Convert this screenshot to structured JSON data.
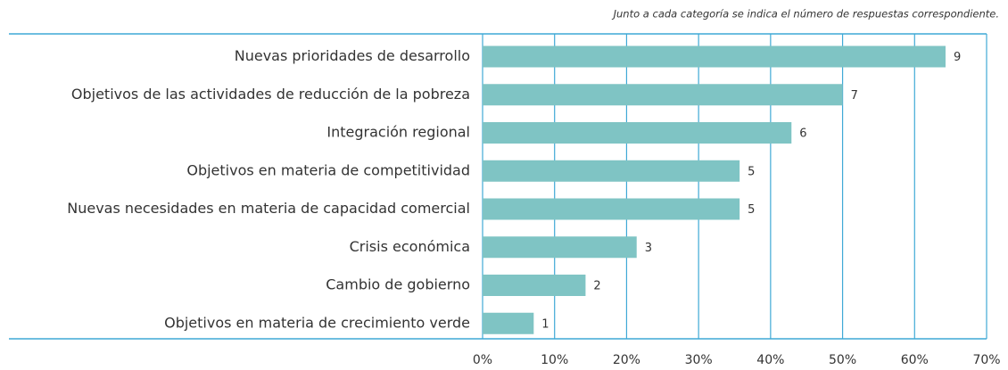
{
  "chart_data": {
    "type": "bar",
    "orientation": "horizontal",
    "annotation": "Junto a cada categoría se indica el número de respuestas correspondiente.",
    "categories": [
      "Nuevas prioridades de desarrollo",
      "Objetivos de las actividades de reducción de la pobreza",
      "Integración regional",
      "Objetivos en materia de competitividad",
      "Nuevas necesidades en materia de capacidad comercial",
      "Crisis económica",
      "Cambio de gobierno",
      "Objetivos en materia de crecimiento verde"
    ],
    "values": [
      64.3,
      50,
      42.9,
      35.7,
      35.7,
      21.4,
      14.3,
      7.1
    ],
    "counts": [
      9,
      7,
      6,
      5,
      5,
      3,
      2,
      1
    ],
    "color": "#7fc4c4",
    "grid_color": "#3fa9d6",
    "xlim": [
      0,
      70
    ],
    "xticks": [
      {
        "value": 0,
        "label": "0%"
      },
      {
        "value": 10,
        "label": "10%"
      },
      {
        "value": 20,
        "label": "20%"
      },
      {
        "value": 30,
        "label": "30%"
      },
      {
        "value": 40,
        "label": "40%"
      },
      {
        "value": 50,
        "label": "50%"
      },
      {
        "value": 60,
        "label": "60%"
      },
      {
        "value": 70,
        "label": "70%"
      }
    ],
    "grid": true
  }
}
